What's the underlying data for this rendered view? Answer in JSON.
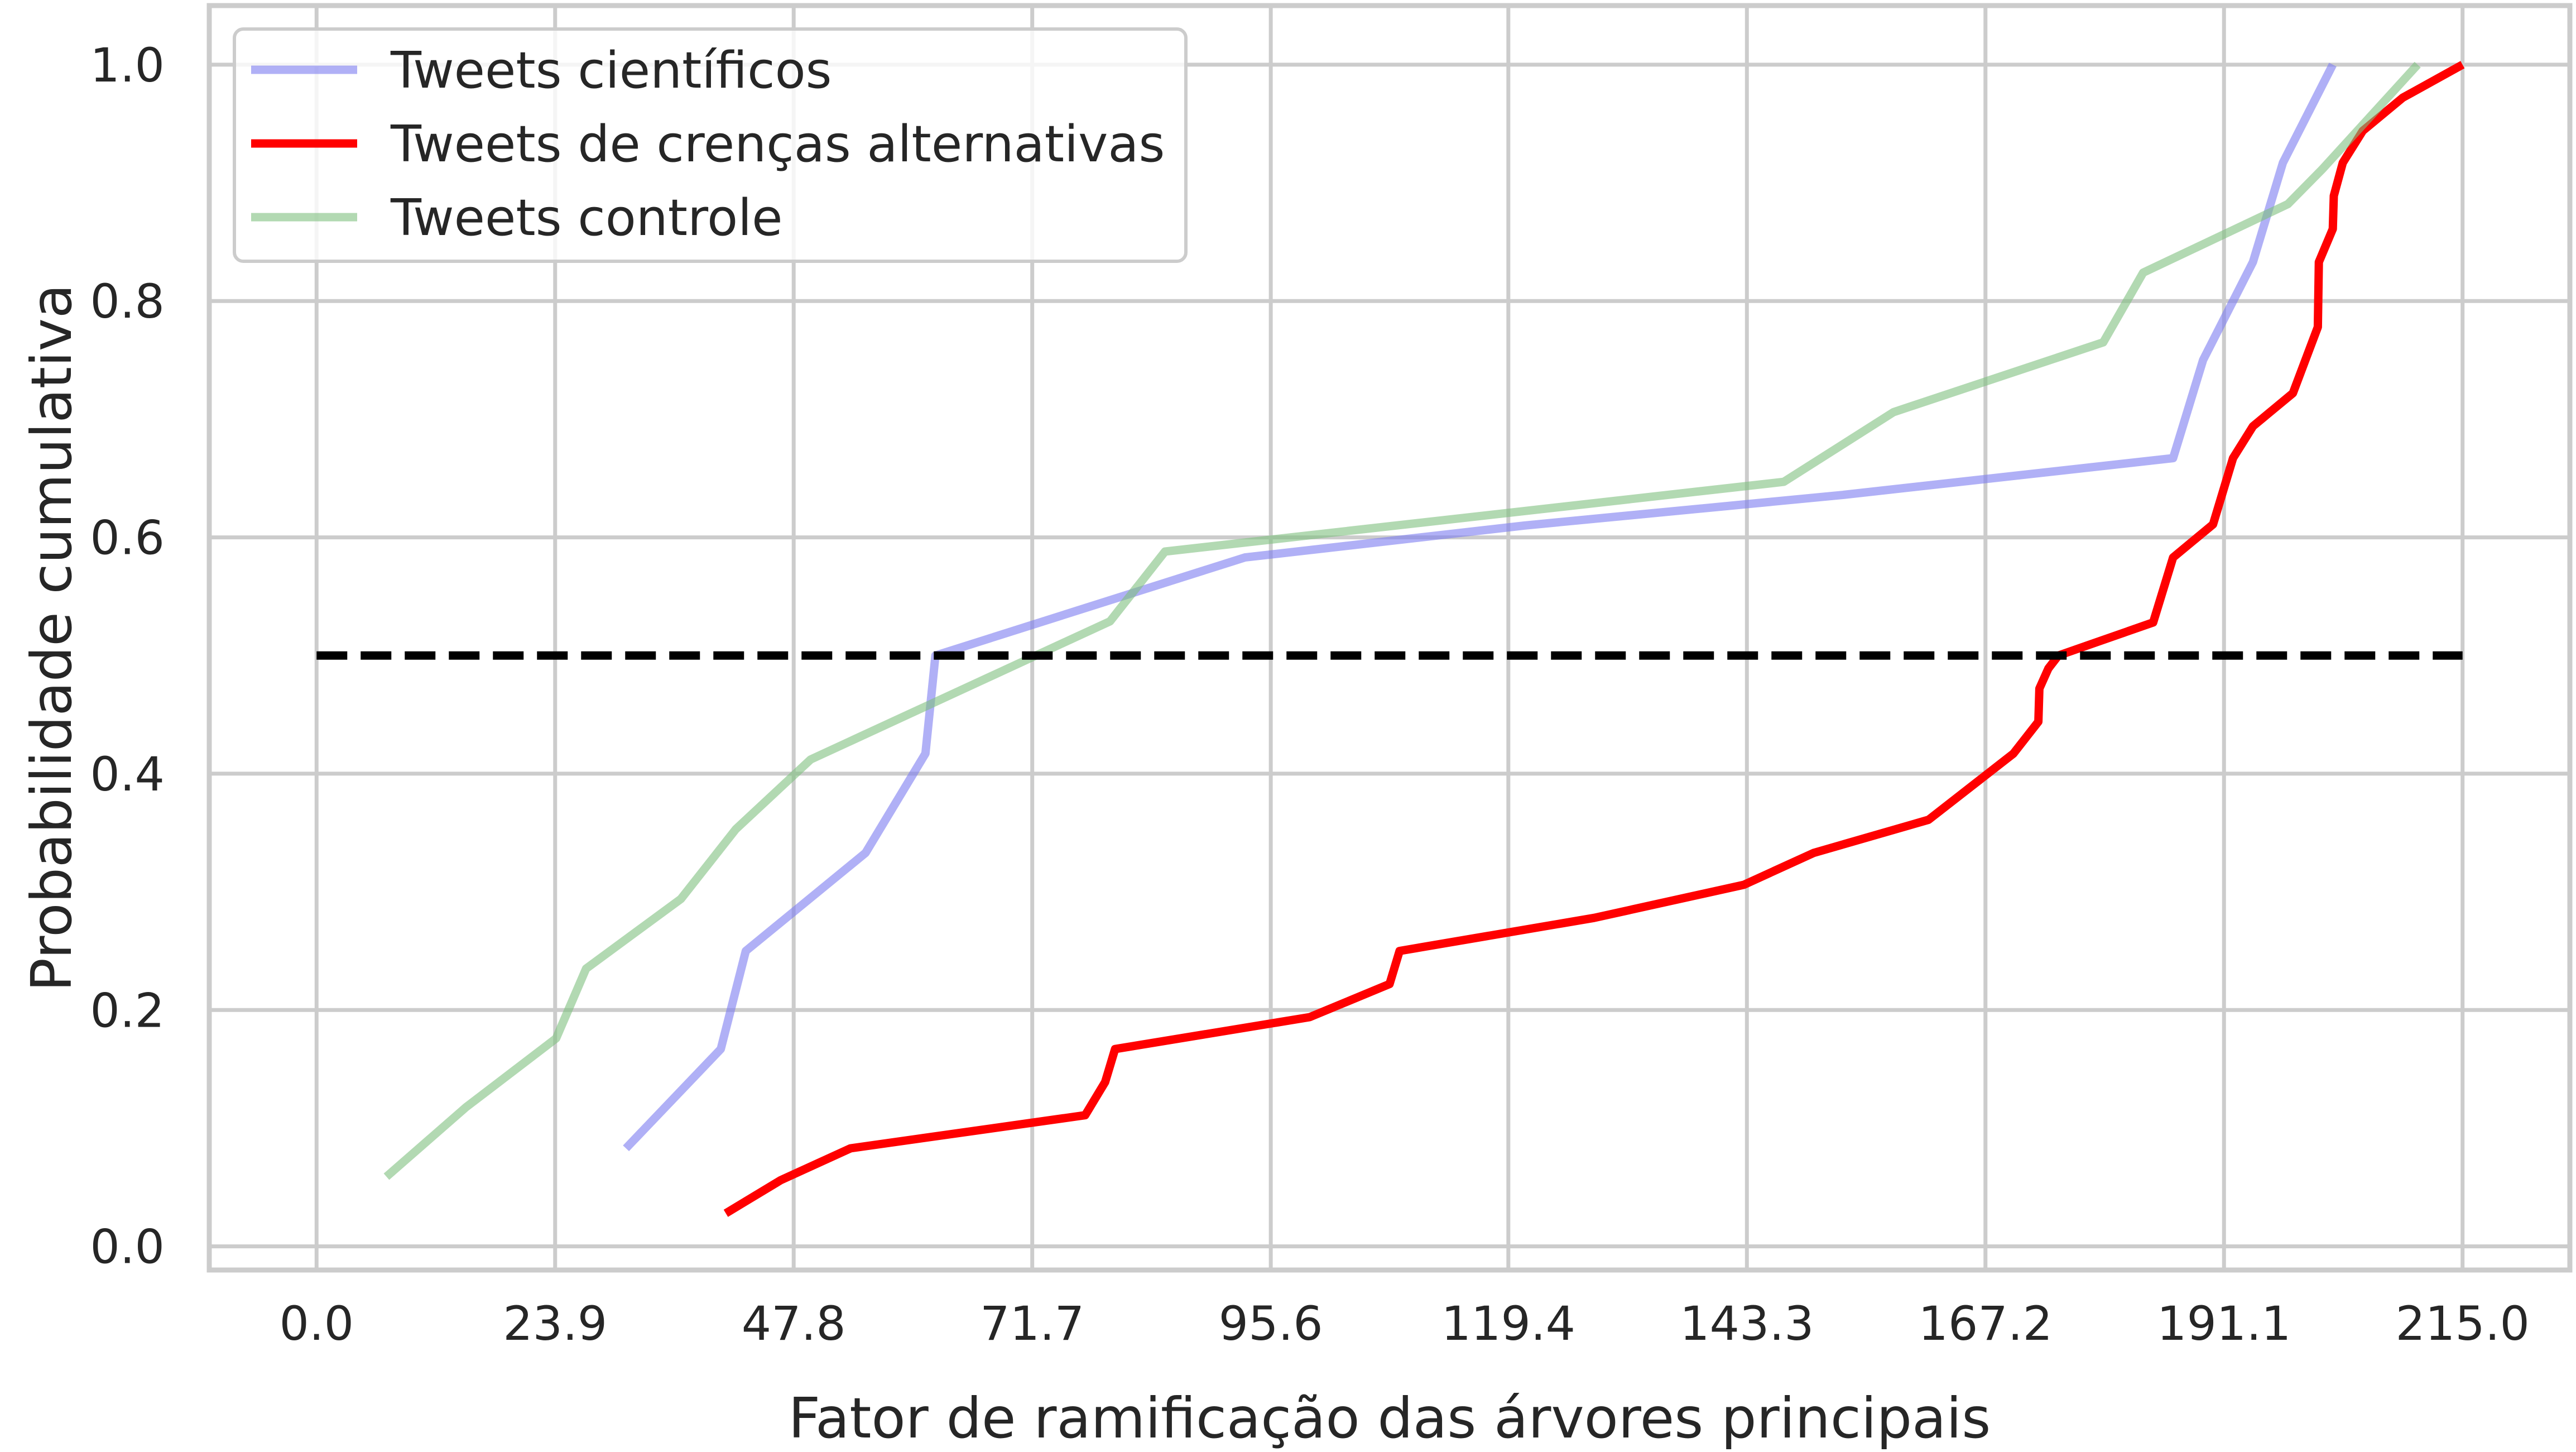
{
  "chart_data": {
    "type": "line",
    "xlabel": "Fator de ramificação das árvores principais",
    "ylabel": "Probabilidade cumulativa",
    "xlim": [
      -10.75,
      225.75
    ],
    "ylim": [
      -0.02,
      1.05
    ],
    "xticks": [
      0.0,
      23.9,
      47.8,
      71.7,
      95.6,
      119.4,
      143.3,
      167.2,
      191.1,
      215.0
    ],
    "xtick_labels": [
      "0.0",
      "23.9",
      "47.8",
      "71.7",
      "95.6",
      "119.4",
      "143.3",
      "167.2",
      "191.1",
      "215.0"
    ],
    "yticks": [
      0.0,
      0.2,
      0.4,
      0.6,
      0.8,
      1.0
    ],
    "ytick_labels": [
      "0.0",
      "0.2",
      "0.4",
      "0.6",
      "0.8",
      "1.0"
    ],
    "grid": true,
    "legend_position": "top-left",
    "reference_line": {
      "y": 0.5,
      "x_range": [
        0,
        215
      ],
      "style": "dashed",
      "color": "#000000"
    },
    "series": [
      {
        "name": "Tweets científicos",
        "color": "#7b7bf0",
        "opacity": 0.6,
        "x": [
          31,
          40.5,
          43,
          55,
          61,
          62,
          93,
          121,
          153,
          186,
          189,
          194,
          197,
          202
        ],
        "y": [
          0.083,
          0.167,
          0.25,
          0.333,
          0.417,
          0.5,
          0.583,
          0.61,
          0.636,
          0.667,
          0.75,
          0.833,
          0.917,
          1.0
        ]
      },
      {
        "name": "Tweets de crenças alternativas",
        "color": "#ff0000",
        "opacity": 1.0,
        "x": [
          41,
          46.5,
          53.5,
          77,
          79,
          80,
          99.5,
          107.5,
          108.5,
          128,
          143,
          150,
          161.5,
          170,
          172.5,
          172.6,
          173.5,
          174.5,
          184,
          186,
          190,
          192,
          194,
          198,
          200.5,
          200.6,
          202,
          202.1,
          203,
          205,
          209,
          215
        ],
        "y": [
          0.028,
          0.056,
          0.083,
          0.111,
          0.139,
          0.167,
          0.194,
          0.222,
          0.25,
          0.278,
          0.306,
          0.333,
          0.361,
          0.417,
          0.444,
          0.472,
          0.489,
          0.5,
          0.528,
          0.583,
          0.611,
          0.667,
          0.694,
          0.722,
          0.778,
          0.833,
          0.861,
          0.889,
          0.917,
          0.944,
          0.972,
          1.0
        ]
      },
      {
        "name": "Tweets controle",
        "color": "#7fbf7f",
        "opacity": 0.6,
        "x": [
          7,
          15,
          24,
          27,
          36.5,
          42,
          49.5,
          79.5,
          85,
          147,
          158,
          179,
          183,
          197.5,
          201,
          210.5
        ],
        "y": [
          0.059,
          0.118,
          0.176,
          0.235,
          0.294,
          0.353,
          0.412,
          0.529,
          0.588,
          0.647,
          0.706,
          0.765,
          0.824,
          0.882,
          0.912,
          1.0
        ]
      }
    ]
  }
}
